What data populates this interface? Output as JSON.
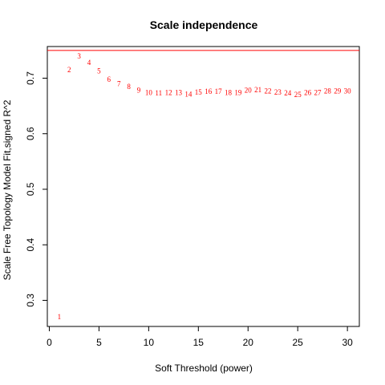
{
  "chart_data": {
    "type": "scatter",
    "title": "Scale independence",
    "xlabel": "Soft Threshold (power)",
    "ylabel": "Scale Free Topology Model Fit,signed R^2",
    "xlim": [
      -0.2,
      31.2
    ],
    "ylim": [
      0.253,
      0.757
    ],
    "xticks": [
      0,
      5,
      10,
      15,
      20,
      25,
      30
    ],
    "yticks": [
      0.3,
      0.4,
      0.5,
      0.6,
      0.7
    ],
    "point_color": "#ff0000",
    "reference_line": {
      "y": 0.75,
      "color": "#ff0000"
    },
    "grid": false,
    "points": [
      {
        "x": 1,
        "y": 0.27,
        "label": "1"
      },
      {
        "x": 2,
        "y": 0.715,
        "label": "2"
      },
      {
        "x": 3,
        "y": 0.74,
        "label": "3"
      },
      {
        "x": 4,
        "y": 0.728,
        "label": "4"
      },
      {
        "x": 5,
        "y": 0.713,
        "label": "5"
      },
      {
        "x": 6,
        "y": 0.698,
        "label": "6"
      },
      {
        "x": 7,
        "y": 0.69,
        "label": "7"
      },
      {
        "x": 8,
        "y": 0.685,
        "label": "8"
      },
      {
        "x": 9,
        "y": 0.678,
        "label": "9"
      },
      {
        "x": 10,
        "y": 0.674,
        "label": "10"
      },
      {
        "x": 11,
        "y": 0.673,
        "label": "11"
      },
      {
        "x": 12,
        "y": 0.674,
        "label": "12"
      },
      {
        "x": 13,
        "y": 0.674,
        "label": "13"
      },
      {
        "x": 14,
        "y": 0.671,
        "label": "14"
      },
      {
        "x": 15,
        "y": 0.675,
        "label": "15"
      },
      {
        "x": 16,
        "y": 0.676,
        "label": "16"
      },
      {
        "x": 17,
        "y": 0.676,
        "label": "17"
      },
      {
        "x": 18,
        "y": 0.674,
        "label": "18"
      },
      {
        "x": 19,
        "y": 0.674,
        "label": "19"
      },
      {
        "x": 20,
        "y": 0.678,
        "label": "20"
      },
      {
        "x": 21,
        "y": 0.679,
        "label": "21"
      },
      {
        "x": 22,
        "y": 0.677,
        "label": "22"
      },
      {
        "x": 23,
        "y": 0.675,
        "label": "23"
      },
      {
        "x": 24,
        "y": 0.673,
        "label": "24"
      },
      {
        "x": 25,
        "y": 0.67,
        "label": "25"
      },
      {
        "x": 26,
        "y": 0.674,
        "label": "26"
      },
      {
        "x": 27,
        "y": 0.674,
        "label": "27"
      },
      {
        "x": 28,
        "y": 0.677,
        "label": "28"
      },
      {
        "x": 29,
        "y": 0.677,
        "label": "29"
      },
      {
        "x": 30,
        "y": 0.677,
        "label": "30"
      }
    ]
  }
}
